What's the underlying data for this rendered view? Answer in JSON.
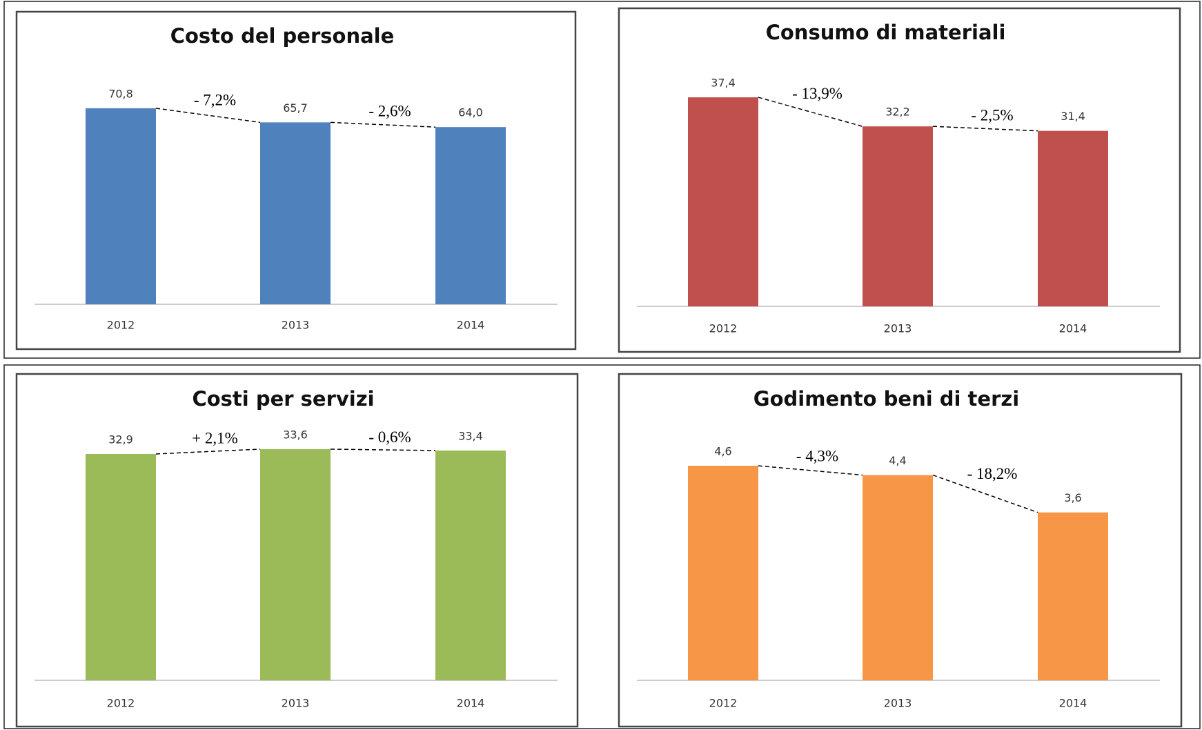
{
  "chart_data": [
    {
      "type": "bar",
      "title": "Costo del personale",
      "categories": [
        "2012",
        "2013",
        "2014"
      ],
      "values": [
        70.8,
        65.7,
        64.0
      ],
      "value_labels": [
        "70,8",
        "65,7",
        "64,0"
      ],
      "color": "#4f81bd",
      "ylim": [
        0,
        80
      ],
      "annotations": [
        "- 7,2%",
        "- 2,6%"
      ]
    },
    {
      "type": "bar",
      "title": "Consumo di materiali",
      "categories": [
        "2012",
        "2013",
        "2014"
      ],
      "values": [
        37.4,
        32.2,
        31.4
      ],
      "value_labels": [
        "37,4",
        "32,2",
        "31,4"
      ],
      "color": "#c0504d",
      "ylim": [
        0,
        40
      ],
      "annotations": [
        "- 13,9%",
        "- 2,5%"
      ]
    },
    {
      "type": "bar",
      "title": "Costi per servizi",
      "categories": [
        "2012",
        "2013",
        "2014"
      ],
      "values": [
        32.9,
        33.6,
        33.4
      ],
      "value_labels": [
        "32,9",
        "33,6",
        "33,4"
      ],
      "color": "#9bbb59",
      "ylim": [
        0,
        35
      ],
      "annotations": [
        "+ 2,1%",
        "- 0,6%"
      ]
    },
    {
      "type": "bar",
      "title": "Godimento beni di terzi",
      "categories": [
        "2012",
        "2013",
        "2014"
      ],
      "values": [
        4.6,
        4.4,
        3.6
      ],
      "value_labels": [
        "4,6",
        "4,4",
        "3,6"
      ],
      "color": "#f79646",
      "ylim": [
        0,
        5
      ],
      "annotations": [
        "- 4,3%",
        "- 18,2%"
      ]
    }
  ]
}
